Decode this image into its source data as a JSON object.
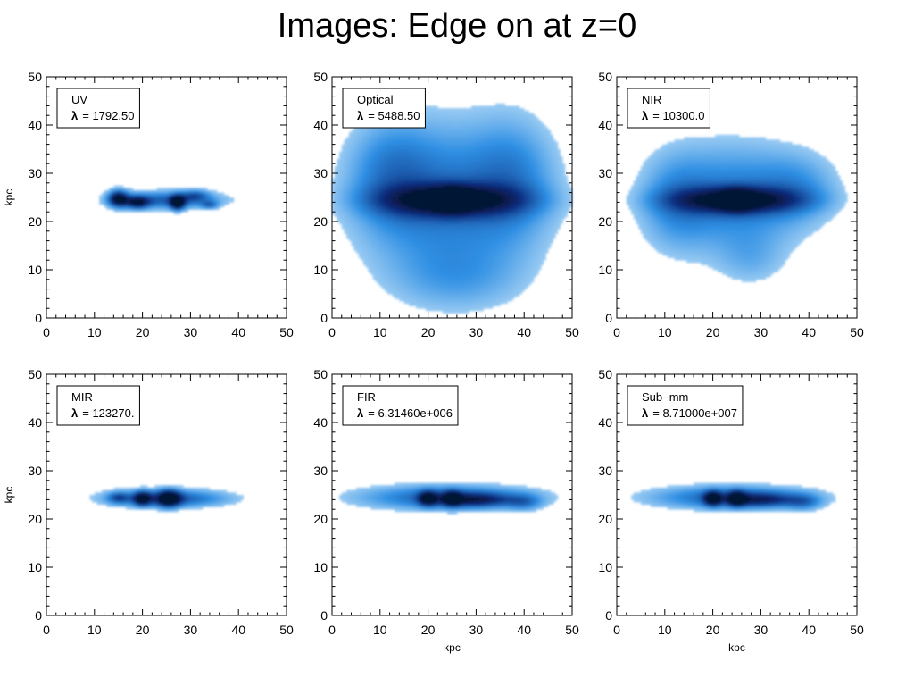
{
  "title": "Images: Edge on at z=0",
  "colors": {
    "frame": "#000000",
    "map_light": "#cfe9fb",
    "map_mid": "#2f8fe3",
    "map_dark": "#0a2a7a",
    "map_core": "#061536"
  },
  "chart_data": [
    {
      "type": "heatmap",
      "band": "UV",
      "legend": {
        "label": "UV",
        "lambda_symbol": "λ",
        "lambda_value": "=  1792.50"
      },
      "xlim": [
        0,
        50
      ],
      "ylim": [
        0,
        50
      ],
      "xticks": [
        "0",
        "10",
        "20",
        "30",
        "40",
        "50"
      ],
      "yticks": [
        "0",
        "10",
        "20",
        "30",
        "40",
        "50"
      ],
      "xlabel": "",
      "ylabel": "kpc",
      "blobs": [
        {
          "x": 25,
          "y": 24.5,
          "sx": 8,
          "sy": 1.3,
          "w": 0.55
        },
        {
          "x": 15,
          "y": 24.8,
          "sx": 1.4,
          "sy": 1.2,
          "w": 0.9
        },
        {
          "x": 19,
          "y": 24.0,
          "sx": 1.6,
          "sy": 0.9,
          "w": 0.7
        },
        {
          "x": 27.3,
          "y": 24.0,
          "sx": 1.0,
          "sy": 1.0,
          "w": 1.0
        },
        {
          "x": 31,
          "y": 25.5,
          "sx": 2.0,
          "sy": 0.8,
          "w": 0.35
        },
        {
          "x": 34,
          "y": 23.5,
          "sx": 1.2,
          "sy": 0.6,
          "w": 0.35
        }
      ]
    },
    {
      "type": "heatmap",
      "band": "Optical",
      "legend": {
        "label": "Optical",
        "lambda_symbol": "λ",
        "lambda_value": "=  5488.50"
      },
      "xlim": [
        0,
        50
      ],
      "ylim": [
        0,
        50
      ],
      "xticks": [
        "0",
        "10",
        "20",
        "30",
        "40",
        "50"
      ],
      "yticks": [
        "0",
        "10",
        "20",
        "30",
        "40",
        "50"
      ],
      "xlabel": "",
      "ylabel": "",
      "blobs": [
        {
          "x": 24,
          "y": 25,
          "sx": 13,
          "sy": 11,
          "w": 0.45
        },
        {
          "x": 12,
          "y": 30,
          "sx": 6,
          "sy": 8,
          "w": 0.25
        },
        {
          "x": 38,
          "y": 29,
          "sx": 6,
          "sy": 9,
          "w": 0.25
        },
        {
          "x": 26,
          "y": 8,
          "sx": 10,
          "sy": 5,
          "w": 0.2
        },
        {
          "x": 25,
          "y": 24.5,
          "sx": 10,
          "sy": 2.2,
          "w": 0.8
        },
        {
          "x": 25,
          "y": 24.5,
          "sx": 2.5,
          "sy": 1.6,
          "w": 0.6
        }
      ]
    },
    {
      "type": "heatmap",
      "band": "NIR",
      "legend": {
        "label": "NIR",
        "lambda_symbol": "λ",
        "lambda_value": "=  10300.0"
      },
      "xlim": [
        0,
        50
      ],
      "ylim": [
        0,
        50
      ],
      "xticks": [
        "0",
        "10",
        "20",
        "30",
        "40",
        "50"
      ],
      "yticks": [
        "0",
        "10",
        "20",
        "30",
        "40",
        "50"
      ],
      "xlabel": "",
      "ylabel": "",
      "blobs": [
        {
          "x": 24,
          "y": 25,
          "sx": 11,
          "sy": 8,
          "w": 0.42
        },
        {
          "x": 12,
          "y": 24,
          "sx": 5,
          "sy": 7,
          "w": 0.22
        },
        {
          "x": 38,
          "y": 27,
          "sx": 6,
          "sy": 5,
          "w": 0.22
        },
        {
          "x": 28,
          "y": 12,
          "sx": 5,
          "sy": 4,
          "w": 0.15
        },
        {
          "x": 25,
          "y": 24.5,
          "sx": 9,
          "sy": 1.8,
          "w": 0.8
        },
        {
          "x": 25,
          "y": 24.5,
          "sx": 2.2,
          "sy": 1.4,
          "w": 0.6
        }
      ]
    },
    {
      "type": "heatmap",
      "band": "MIR",
      "legend": {
        "label": "MIR",
        "lambda_symbol": "λ",
        "lambda_value": "=  123270."
      },
      "xlim": [
        0,
        50
      ],
      "ylim": [
        0,
        50
      ],
      "xticks": [
        "0",
        "10",
        "20",
        "30",
        "40",
        "50"
      ],
      "yticks": [
        "0",
        "10",
        "20",
        "30",
        "40",
        "50"
      ],
      "xlabel": "",
      "ylabel": "kpc",
      "blobs": [
        {
          "x": 25,
          "y": 24.3,
          "sx": 9,
          "sy": 1.3,
          "w": 0.6
        },
        {
          "x": 20,
          "y": 24.3,
          "sx": 1.2,
          "sy": 1.0,
          "w": 0.8
        },
        {
          "x": 25.5,
          "y": 24.3,
          "sx": 1.6,
          "sy": 1.2,
          "w": 0.9
        },
        {
          "x": 15,
          "y": 24.5,
          "sx": 1.5,
          "sy": 0.8,
          "w": 0.4
        }
      ]
    },
    {
      "type": "heatmap",
      "band": "FIR",
      "legend": {
        "label": "FIR",
        "lambda_symbol": "λ",
        "lambda_value": "=  6.31460e+006"
      },
      "xlim": [
        0,
        50
      ],
      "ylim": [
        0,
        50
      ],
      "xticks": [
        "0",
        "10",
        "20",
        "30",
        "40",
        "50"
      ],
      "yticks": [
        "0",
        "10",
        "20",
        "30",
        "40",
        "50"
      ],
      "xlabel": "kpc",
      "ylabel": "",
      "blobs": [
        {
          "x": 24,
          "y": 24.5,
          "sx": 13,
          "sy": 1.8,
          "w": 0.55
        },
        {
          "x": 20,
          "y": 24.3,
          "sx": 1.3,
          "sy": 1.0,
          "w": 0.8
        },
        {
          "x": 25,
          "y": 24.3,
          "sx": 1.3,
          "sy": 1.0,
          "w": 0.8
        },
        {
          "x": 30,
          "y": 24.0,
          "sx": 5,
          "sy": 1.0,
          "w": 0.5
        },
        {
          "x": 40,
          "y": 23.5,
          "sx": 2.5,
          "sy": 1.2,
          "w": 0.3
        }
      ]
    },
    {
      "type": "heatmap",
      "band": "Sub-mm",
      "legend": {
        "label": "Sub−mm",
        "lambda_symbol": "λ",
        "lambda_value": "=  8.71000e+007"
      },
      "xlim": [
        0,
        50
      ],
      "ylim": [
        0,
        50
      ],
      "xticks": [
        "0",
        "10",
        "20",
        "30",
        "40",
        "50"
      ],
      "yticks": [
        "0",
        "10",
        "20",
        "30",
        "40",
        "50"
      ],
      "xlabel": "kpc",
      "ylabel": "",
      "blobs": [
        {
          "x": 24,
          "y": 24.5,
          "sx": 12,
          "sy": 1.7,
          "w": 0.55
        },
        {
          "x": 20,
          "y": 24.3,
          "sx": 1.2,
          "sy": 1.0,
          "w": 0.85
        },
        {
          "x": 25,
          "y": 24.3,
          "sx": 1.2,
          "sy": 1.0,
          "w": 0.85
        },
        {
          "x": 30,
          "y": 24.0,
          "sx": 5,
          "sy": 1.0,
          "w": 0.45
        },
        {
          "x": 39,
          "y": 23.5,
          "sx": 2.5,
          "sy": 1.2,
          "w": 0.3
        }
      ]
    }
  ]
}
